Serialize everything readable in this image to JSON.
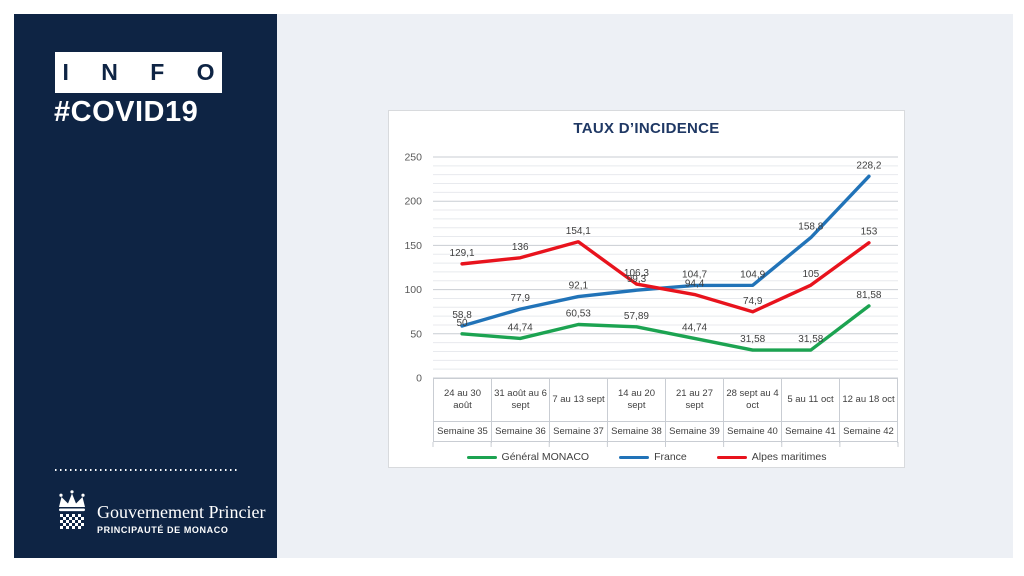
{
  "sidebar": {
    "info_label": "INFO",
    "hashtag": "#COVID19",
    "logo": {
      "org_name": "Gouvernement Princier",
      "org_subtitle": "PRINCIPAUTÉ DE MONACO"
    }
  },
  "colors": {
    "sidebar_navy": "#0E2444",
    "panel_gray": "#EDF0F5",
    "title_navy": "#1F3864",
    "major_grid": "#C9CDD3",
    "minor_grid": "#E8EAEE",
    "tick_text": "#595959",
    "label_text": "#404040"
  },
  "chart_data": {
    "type": "line",
    "title": "TAUX D’INCIDENCE",
    "categories": [
      {
        "dates": "24 au 30 août",
        "week": "Semaine 35"
      },
      {
        "dates": "31 août au 6 sept",
        "week": "Semaine 36"
      },
      {
        "dates": "7 au 13 sept",
        "week": "Semaine 37"
      },
      {
        "dates": "14 au 20 sept",
        "week": "Semaine 38"
      },
      {
        "dates": "21 au 27 sept",
        "week": "Semaine 39"
      },
      {
        "dates": "28 sept au 4 oct",
        "week": "Semaine 40"
      },
      {
        "dates": "5 au 11 oct",
        "week": "Semaine 41"
      },
      {
        "dates": "12 au 18 oct",
        "week": "Semaine 42"
      }
    ],
    "series": [
      {
        "name": "Général MONACO",
        "color": "#1CA351",
        "values": [
          50,
          44.74,
          60.53,
          57.89,
          44.74,
          31.58,
          31.58,
          81.58
        ],
        "labels": [
          "50",
          "44,74",
          "60,53",
          "57,89",
          "44,74",
          "31,58",
          "31,58",
          "81,58"
        ]
      },
      {
        "name": "France",
        "color": "#2173B8",
        "values": [
          58.8,
          77.9,
          92.1,
          99.3,
          104.7,
          104.9,
          158.8,
          228.2
        ],
        "labels": [
          "58,8",
          "77,9",
          "92,1",
          "99,3",
          "104,7",
          "104,9",
          "158,8",
          "228,2"
        ]
      },
      {
        "name": "Alpes maritimes",
        "color": "#E8131D",
        "values": [
          129.1,
          136,
          154.1,
          106.3,
          94.4,
          74.9,
          105,
          153
        ],
        "labels": [
          "129,1",
          "136",
          "154,1",
          "106,3",
          "94,4",
          "74,9",
          "105",
          "153"
        ]
      }
    ],
    "y_ticks": [
      0,
      50,
      100,
      150,
      200,
      250
    ],
    "ylim": [
      0,
      250
    ],
    "minor_grid_step": 10,
    "xlabel": "",
    "ylabel": "",
    "grid": true,
    "legend_position": "bottom"
  }
}
